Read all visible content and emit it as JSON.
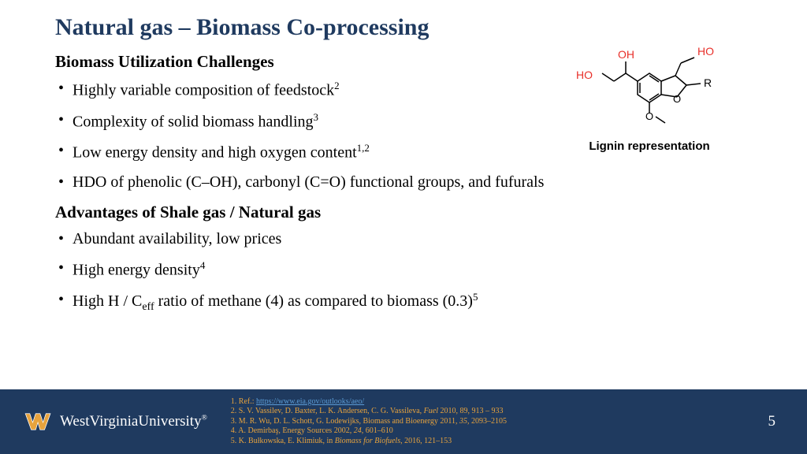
{
  "title": "Natural gas – Biomass Co-processing",
  "sections": {
    "challenges": {
      "heading": "Biomass Utilization Challenges",
      "items": [
        {
          "text": "Highly variable composition of feedstock",
          "sup": "2"
        },
        {
          "text": "Complexity of solid biomass handling",
          "sup": "3"
        },
        {
          "text": "Low energy density and high oxygen content",
          "sup": "1,2"
        },
        {
          "text": "HDO of phenolic (C–OH), carbonyl (C=O) functional groups, and fufurals",
          "sup": ""
        }
      ]
    },
    "advantages": {
      "heading": "Advantages of Shale gas / Natural gas",
      "items": [
        {
          "text": "Abundant availability, low prices",
          "sup": ""
        },
        {
          "text": "High energy density",
          "sup": "4"
        },
        {
          "html": "High H / C<sub>eff</sub> ratio of methane (4) as compared to biomass (0.3)",
          "sup": "5"
        }
      ]
    }
  },
  "molecule": {
    "caption": "Lignin representation",
    "labels": {
      "oh1": "HO",
      "oh2": "OH",
      "oh3": "HO",
      "o1": "O",
      "o2": "O",
      "r": "R"
    },
    "colors": {
      "oh": "#e8302a",
      "bond": "#000000"
    }
  },
  "footer": {
    "university": "WestVirginiaUniversity",
    "logo_colors": {
      "gold": "#e8a33d",
      "blue": "#1f3a5f"
    },
    "refs": [
      {
        "pre": "1. Ref.: ",
        "link": "https://www.eia.gov/outlooks/aeo/"
      },
      {
        "text": "2. S. V. Vassilev, D. Baxter, L. K. Andersen, C. G. Vassileva, ",
        "ital": "Fuel",
        "post": " 2010, 89, 913 – 933"
      },
      {
        "text": "3. M. R. Wu, D. L. Schott, G. Lodewijks, Biomass and Bioenergy 2011, ",
        "ital": "35",
        "post": ", 2093–2105"
      },
      {
        "text": "4. A. Demirbaş, Energy Sources 2002, ",
        "ital": "24",
        "post": ", 601–610"
      },
      {
        "text": "5. K. Bułkowska, E. Klimiuk, in ",
        "ital": "Biomass for Biofuels",
        "post": ", 2016, 121–153"
      }
    ],
    "page": "5"
  },
  "colors": {
    "title": "#1f3a5f",
    "footer_bg": "#1f3a5f",
    "ref_text": "#e8a33d",
    "link": "#5b9bd5"
  }
}
